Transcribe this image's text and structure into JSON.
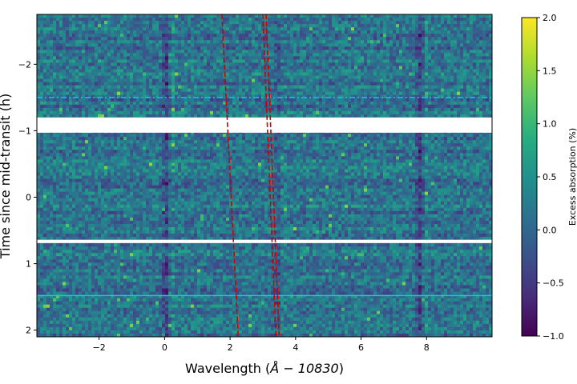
{
  "chart_data": {
    "type": "heatmap",
    "title": "",
    "xlabel": "Wavelength ($\\AA - 10830$)",
    "xlabel_prefix": "Wavelength (",
    "xlabel_math": "Å − 10830",
    "xlabel_suffix": ")",
    "ylabel": "Time since mid-transit (h)",
    "xlim": [
      -3.9,
      10.0
    ],
    "ylim": [
      2.1,
      -2.75
    ],
    "y_inverted": true,
    "colormap": "viridis",
    "colorbar": {
      "label": "Excess absorption (%)",
      "range": [
        -1.0,
        2.0
      ],
      "ticks": [
        -1.0,
        -0.5,
        0.0,
        0.5,
        1.0,
        1.5,
        2.0
      ],
      "tick_labels": [
        "−1.0",
        "−0.5",
        "0.0",
        "0.5",
        "1.0",
        "1.5",
        "2.0"
      ]
    },
    "x_ticks": [
      -2,
      0,
      2,
      4,
      6,
      8
    ],
    "x_tick_labels": [
      "−2",
      "0",
      "2",
      "4",
      "6",
      "8"
    ],
    "y_ticks": [
      -2,
      -1,
      0,
      1,
      2
    ],
    "y_tick_labels": [
      "−2",
      "−1",
      "0",
      "1",
      "2"
    ],
    "data_gaps": [
      {
        "y_from": -1.2,
        "y_to": -0.97
      },
      {
        "y_from": 0.64,
        "y_to": 0.69
      }
    ],
    "absorption_features": [
      {
        "x": 0.05,
        "strength": 0.55
      },
      {
        "x": 7.8,
        "strength": 0.5
      },
      {
        "x": 3.45,
        "strength": 0.25
      }
    ],
    "contact_lines": [
      {
        "y": -1.5,
        "color": "#00ccee",
        "style": "dashdot"
      },
      {
        "y": 1.48,
        "color": "#00ccee",
        "style": "solid"
      }
    ],
    "trace_lines": [
      {
        "x_start": 1.75,
        "y_start": -2.75,
        "x_end": 2.25,
        "y_end": 2.1,
        "color": "#cc0000",
        "style": "dashed"
      },
      {
        "x_start": 3.0,
        "y_start": -2.75,
        "x_end": 3.4,
        "y_end": 2.1,
        "color": "#cc0000",
        "style": "dashed"
      },
      {
        "x_start": 3.1,
        "y_start": -2.75,
        "x_end": 3.5,
        "y_end": 2.1,
        "color": "#cc0000",
        "style": "dashed"
      }
    ]
  }
}
